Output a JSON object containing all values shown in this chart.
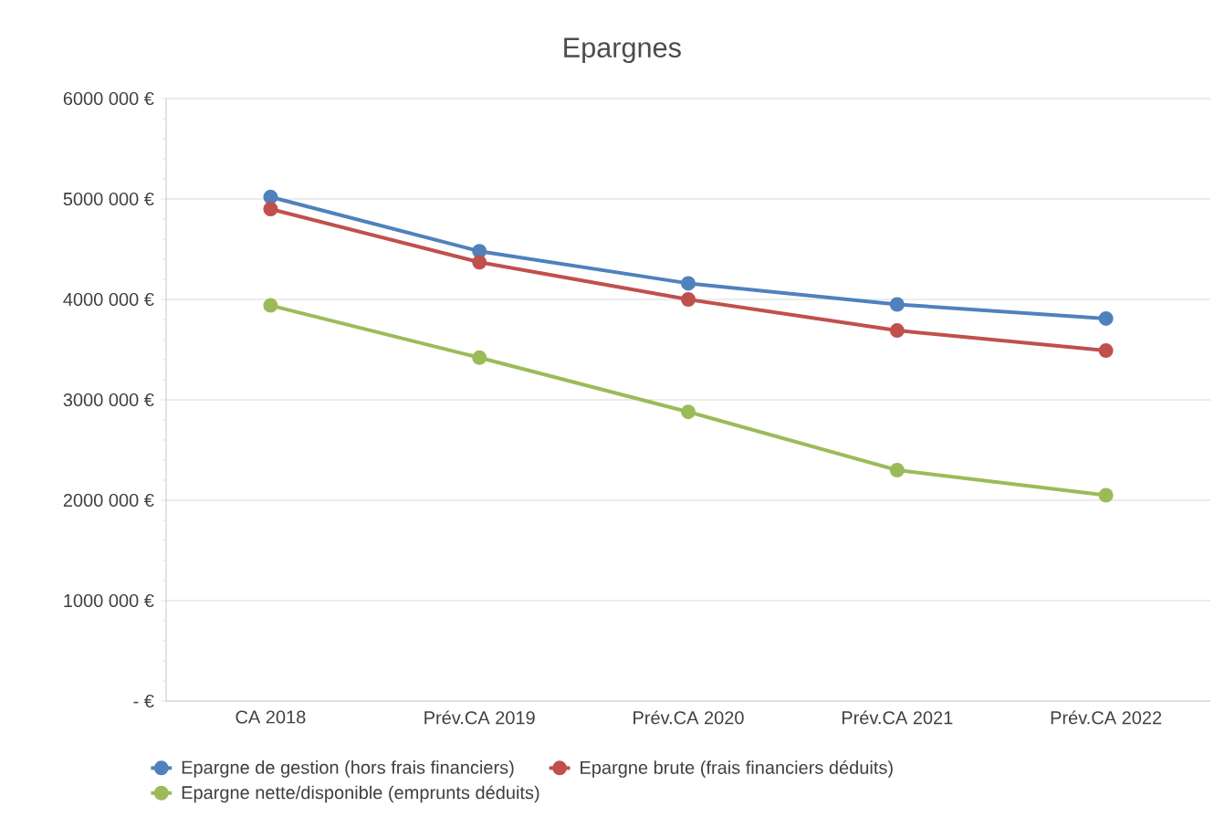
{
  "chart_data": {
    "type": "line",
    "title": "Epargnes",
    "categories": [
      "CA 2018",
      "Prév.CA 2019",
      "Prév.CA 2020",
      "Prév.CA 2021",
      "Prév.CA 2022"
    ],
    "series": [
      {
        "name": "Epargne de gestion (hors frais financiers)",
        "color": "#4f81bd",
        "values": [
          5020000,
          4480000,
          4160000,
          3950000,
          3810000
        ]
      },
      {
        "name": "Epargne brute (frais financiers déduits)",
        "color": "#c0504d",
        "values": [
          4900000,
          4370000,
          4000000,
          3690000,
          3490000
        ]
      },
      {
        "name": "Epargne nette/disponible (emprunts déduits)",
        "color": "#9bbb59",
        "values": [
          3940000,
          3420000,
          2880000,
          2300000,
          2050000
        ]
      }
    ],
    "ylim": [
      0,
      6000000
    ],
    "yticks": [
      {
        "value": 0,
        "label": "-   €"
      },
      {
        "value": 1000000,
        "label": "1000 000 €"
      },
      {
        "value": 2000000,
        "label": "2000 000 €"
      },
      {
        "value": 3000000,
        "label": "3000 000 €"
      },
      {
        "value": 4000000,
        "label": "4000 000 €"
      },
      {
        "value": 5000000,
        "label": "5000 000 €"
      },
      {
        "value": 6000000,
        "label": "6000 000 €"
      }
    ],
    "grid": "y",
    "legend": "bottom",
    "marker": "circle",
    "line_style": "solid"
  }
}
